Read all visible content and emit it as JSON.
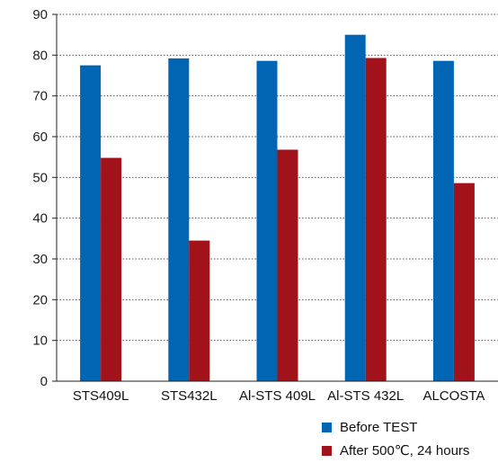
{
  "chart_data": {
    "type": "bar",
    "categories": [
      "STS409L",
      "STS432L",
      "Al-STS 409L",
      "Al-STS 432L",
      "ALCOSTA"
    ],
    "series": [
      {
        "name": "Before TEST",
        "color": "#0066b3",
        "values": [
          77.5,
          79.2,
          78.6,
          85.0,
          78.6
        ]
      },
      {
        "name": "After 500℃, 24 hours",
        "color": "#a1121b",
        "values": [
          54.8,
          34.5,
          56.8,
          79.3,
          48.6
        ]
      }
    ],
    "ylim": [
      0,
      90
    ],
    "yticks": [
      0,
      10,
      20,
      30,
      40,
      50,
      60,
      70,
      80,
      90
    ],
    "grid": true,
    "legend": "bottom-right"
  }
}
